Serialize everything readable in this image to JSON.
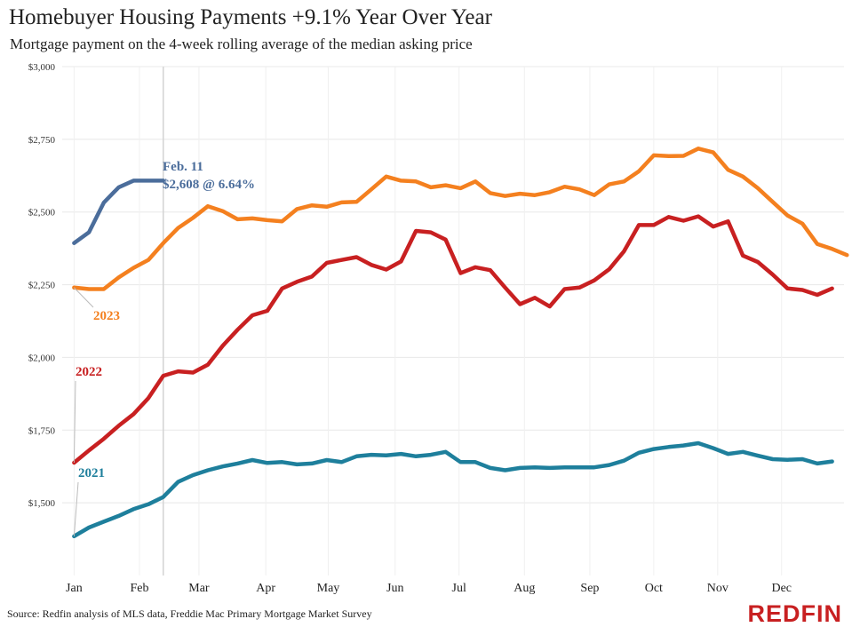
{
  "header": {
    "title": "Homebuyer Housing Payments +9.1% Year Over Year",
    "subtitle": "Mortgage payment on the 4-week rolling average of the median asking price"
  },
  "footer": {
    "source": "Source: Redfin analysis of MLS data, Freddie Mac Primary Mortgage Market Survey",
    "brand": "REDFIN"
  },
  "annotation": {
    "line1": "Feb. 11",
    "line2": "$2,608 @ 6.64%"
  },
  "chart_data": {
    "type": "line",
    "title": "Homebuyer Housing Payments +9.1% Year Over Year",
    "subtitle": "Mortgage payment on the 4-week rolling average of the median asking price",
    "xlabel": "",
    "ylabel": "",
    "x_ticks": [
      "Jan",
      "Feb",
      "Mar",
      "Apr",
      "May",
      "Jun",
      "Jul",
      "Aug",
      "Sep",
      "Oct",
      "Nov",
      "Dec"
    ],
    "y_ticks": [
      "$1,500",
      "$1,750",
      "$2,000",
      "$2,250",
      "$2,500",
      "$2,750",
      "$3,000"
    ],
    "ylim": [
      1250,
      3000
    ],
    "xlim_weeks": [
      -0.8,
      51.8
    ],
    "grid": true,
    "marker_week": 6,
    "series": [
      {
        "name": "2021",
        "color": "#1e7f9c",
        "values": [
          1385,
          1415,
          1435,
          1455,
          1478,
          1495,
          1520,
          1572,
          1595,
          1612,
          1625,
          1635,
          1647,
          1637,
          1640,
          1632,
          1635,
          1647,
          1640,
          1660,
          1665,
          1663,
          1668,
          1660,
          1665,
          1675,
          1640,
          1640,
          1620,
          1612,
          1620,
          1622,
          1620,
          1622,
          1622,
          1622,
          1630,
          1645,
          1672,
          1685,
          1692,
          1697,
          1705,
          1688,
          1668,
          1675,
          1662,
          1650,
          1648,
          1650,
          1635,
          1642
        ]
      },
      {
        "name": "2022",
        "color": "#c82021",
        "values": [
          1638,
          1680,
          1720,
          1765,
          1805,
          1860,
          1937,
          1952,
          1948,
          1975,
          2040,
          2095,
          2145,
          2160,
          2237,
          2260,
          2278,
          2325,
          2335,
          2345,
          2318,
          2302,
          2330,
          2435,
          2430,
          2405,
          2290,
          2310,
          2300,
          2240,
          2183,
          2205,
          2175,
          2235,
          2240,
          2265,
          2303,
          2365,
          2455,
          2455,
          2483,
          2470,
          2485,
          2450,
          2468,
          2350,
          2328,
          2285,
          2237,
          2232,
          2215,
          2237
        ]
      },
      {
        "name": "2023",
        "color": "#f4801f",
        "values": [
          2240,
          2235,
          2235,
          2275,
          2308,
          2335,
          2393,
          2445,
          2480,
          2520,
          2503,
          2475,
          2478,
          2472,
          2468,
          2510,
          2523,
          2518,
          2533,
          2535,
          2578,
          2622,
          2608,
          2605,
          2585,
          2592,
          2582,
          2605,
          2565,
          2555,
          2563,
          2558,
          2568,
          2587,
          2578,
          2558,
          2595,
          2605,
          2640,
          2695,
          2692,
          2693,
          2718,
          2705,
          2645,
          2622,
          2582,
          2535,
          2488,
          2460,
          2390,
          2373,
          2352
        ]
      },
      {
        "name": "",
        "color": "#4b6d9b",
        "values": [
          2393,
          2430,
          2532,
          2585,
          2608,
          2608,
          2608
        ]
      }
    ]
  }
}
